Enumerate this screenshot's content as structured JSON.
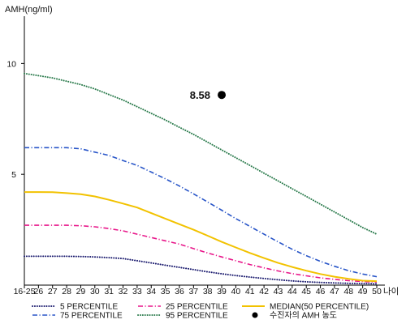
{
  "chart_data": {
    "type": "line",
    "title": "",
    "ylabel": "AMH(ng/ml)",
    "xlabel": "나이",
    "ylim": [
      0,
      11
    ],
    "y_ticks": [
      {
        "value": 10,
        "label": "10"
      },
      {
        "value": 5,
        "label": "5"
      }
    ],
    "x": [
      25,
      26,
      27,
      28,
      29,
      30,
      31,
      32,
      33,
      34,
      35,
      36,
      37,
      38,
      39,
      40,
      41,
      42,
      43,
      44,
      45,
      46,
      47,
      48,
      49,
      50
    ],
    "x_tick_labels": [
      "16-25",
      "26",
      "27",
      "28",
      "29",
      "30",
      "31",
      "32",
      "33",
      "34",
      "35",
      "36",
      "37",
      "38",
      "39",
      "40",
      "41",
      "42",
      "43",
      "44",
      "45",
      "46",
      "47",
      "48",
      "49",
      "50"
    ],
    "grid": false,
    "legend_position": "bottom",
    "series": [
      {
        "name": "5 PERCENTILE",
        "color": "#1a1a6e",
        "dash": "dotted",
        "values": [
          1.3,
          1.3,
          1.3,
          1.3,
          1.29,
          1.27,
          1.24,
          1.2,
          1.1,
          1.0,
          0.9,
          0.8,
          0.7,
          0.6,
          0.51,
          0.43,
          0.36,
          0.3,
          0.24,
          0.19,
          0.15,
          0.12,
          0.1,
          0.08,
          0.07,
          0.06
        ]
      },
      {
        "name": "25 PERCENTILE",
        "color": "#e8178a",
        "dash": "dashdot",
        "values": [
          2.7,
          2.7,
          2.7,
          2.7,
          2.68,
          2.63,
          2.55,
          2.45,
          2.3,
          2.15,
          2.0,
          1.85,
          1.65,
          1.45,
          1.27,
          1.1,
          0.93,
          0.78,
          0.64,
          0.52,
          0.42,
          0.33,
          0.26,
          0.2,
          0.16,
          0.14
        ]
      },
      {
        "name": "MEDIAN(50 PERCENTILE)",
        "color": "#f2c200",
        "dash": "solid",
        "values": [
          4.2,
          4.2,
          4.19,
          4.15,
          4.1,
          4.0,
          3.85,
          3.68,
          3.5,
          3.25,
          3.0,
          2.75,
          2.5,
          2.23,
          1.95,
          1.7,
          1.45,
          1.22,
          1.0,
          0.82,
          0.65,
          0.5,
          0.38,
          0.28,
          0.2,
          0.18
        ]
      },
      {
        "name": "75 PERCENTILE",
        "color": "#2855c8",
        "dash": "dashdot",
        "values": [
          6.2,
          6.2,
          6.2,
          6.2,
          6.15,
          6.0,
          5.85,
          5.62,
          5.4,
          5.1,
          4.8,
          4.47,
          4.12,
          3.75,
          3.38,
          3.0,
          2.65,
          2.3,
          1.95,
          1.62,
          1.33,
          1.07,
          0.85,
          0.65,
          0.5,
          0.38
        ]
      },
      {
        "name": "95 PERCENTILE",
        "color": "#2e7d4f",
        "dash": "dotted",
        "values": [
          9.55,
          9.45,
          9.35,
          9.2,
          9.05,
          8.85,
          8.6,
          8.35,
          8.05,
          7.75,
          7.45,
          7.12,
          6.8,
          6.45,
          6.1,
          5.75,
          5.4,
          5.05,
          4.7,
          4.35,
          4.0,
          3.65,
          3.3,
          2.95,
          2.6,
          2.3
        ]
      }
    ],
    "marker": {
      "name": "수진자의 AMH 농도",
      "x": 39,
      "y": 8.58,
      "label": "8.58",
      "color": "#000000"
    }
  }
}
